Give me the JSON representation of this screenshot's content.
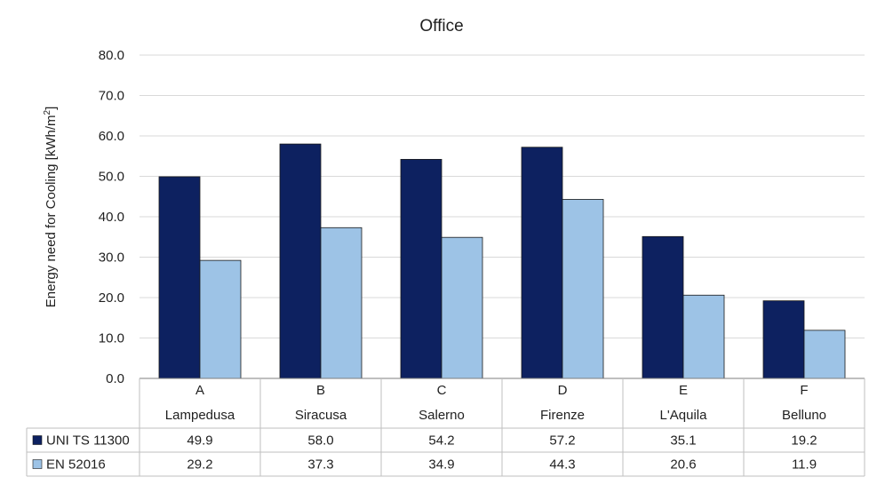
{
  "chart_data": {
    "type": "bar",
    "title": "Office",
    "ylabel": "Energy need for Cooling [kWh/m²]",
    "ylabel_parts": {
      "main": "Energy need for Cooling [kWh/m",
      "sup": "2",
      "close": "]"
    },
    "xlabel": "",
    "ylim": [
      0,
      80
    ],
    "yticks": [
      "0.0",
      "10.0",
      "20.0",
      "30.0",
      "40.0",
      "50.0",
      "60.0",
      "70.0",
      "80.0"
    ],
    "categories": [
      "A",
      "B",
      "C",
      "D",
      "E",
      "F"
    ],
    "subcategories": [
      "Lampedusa",
      "Siracusa",
      "Salerno",
      "Firenze",
      "L'Aquila",
      "Belluno"
    ],
    "series": [
      {
        "name": "UNI TS 11300",
        "color": "#0d2160",
        "values": [
          49.9,
          58.0,
          54.2,
          57.2,
          35.1,
          19.2
        ],
        "labels": [
          "49.9",
          "58.0",
          "54.2",
          "57.2",
          "35.1",
          "19.2"
        ]
      },
      {
        "name": "EN 52016",
        "color": "#9dc3e6",
        "values": [
          29.2,
          37.3,
          34.9,
          44.3,
          20.6,
          11.9
        ],
        "labels": [
          "29.2",
          "37.3",
          "34.9",
          "44.3",
          "20.6",
          "11.9"
        ]
      }
    ],
    "grid": true,
    "legend": "data-table-left"
  }
}
